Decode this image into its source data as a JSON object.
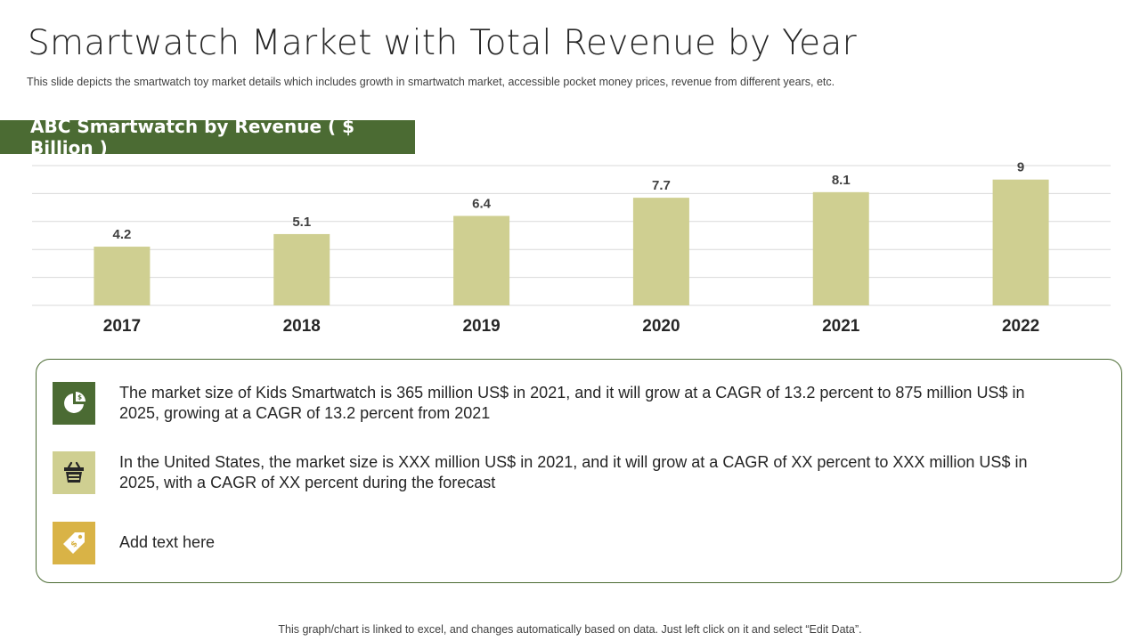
{
  "title": "Smartwatch Market with Total Revenue by Year",
  "subtitle": "This slide depicts the smartwatch toy market details which includes growth in smartwatch market, accessible pocket money prices, revenue  from different  years, etc.",
  "chart_banner": "ABC Smartwatch by Revenue ( $ Billion )",
  "chart_data": {
    "type": "bar",
    "categories": [
      "2017",
      "2018",
      "2019",
      "2020",
      "2021",
      "2022"
    ],
    "values": [
      4.2,
      5.1,
      6.4,
      7.7,
      8.1,
      9
    ],
    "title": "ABC Smartwatch by Revenue ( $ Billion )",
    "xlabel": "",
    "ylabel": "",
    "ylim": [
      0,
      10
    ],
    "grid": true,
    "bar_color": "#cfcf91",
    "data_labels": true
  },
  "info_items": [
    {
      "icon": "pie-chart-icon",
      "icon_bg": "#4b6b33",
      "text": "The market size of Kids Smartwatch is 365 million US$ in 2021, and it will grow at a CAGR of 13.2 percent to 875 million US$ in 2025, growing at a CAGR of 13.2 percent from 2021"
    },
    {
      "icon": "basket-icon",
      "icon_bg": "#cfcf91",
      "text": "In the United States, the market size is XXX million US$ in 2021, and it will grow at a CAGR of XX percent to XXX million US$ in 2025, with a CAGR of XX percent during the forecast"
    },
    {
      "icon": "price-tag-icon",
      "icon_bg": "#d9b346",
      "text": "Add text here"
    }
  ],
  "footer": "This graph/chart is linked to excel, and changes automatically based on data. Just left click on it and select “Edit Data”."
}
